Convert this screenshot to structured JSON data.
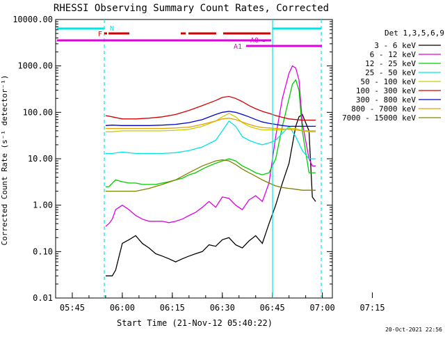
{
  "chart_data": {
    "type": "line",
    "title": "RHESSI Observing Summary Count Rates, Corrected",
    "xlabel": "Start Time (21-Nov-12 05:40:22)",
    "ylabel": "Corrected Count Rate (s⁻¹ detector⁻¹)",
    "yscale": "log",
    "ylim": [
      0.01,
      10000
    ],
    "xlim_minutes": [
      0,
      83
    ],
    "x_ticks": [
      "05:45",
      "06:00",
      "06:15",
      "06:30",
      "06:45",
      "07:00",
      "07:15"
    ],
    "x_tick_minutes": [
      5,
      20,
      35,
      50,
      65,
      80,
      95
    ],
    "y_ticks": [
      "0.01",
      "0.10",
      "1.00",
      "10.00",
      "100.00",
      "1000.00",
      "10000.00"
    ],
    "legend_title": "Det 1,3,5,6,9",
    "timestamp": "20-Oct-2021 22:56",
    "bar_labels": {
      "N": "N",
      "F": "F",
      "A0": "A0",
      "A1": "A1"
    },
    "colors": {
      "cyan": "#00e5e5",
      "red": "#d40000",
      "magenta": "#e000e0"
    },
    "series": [
      {
        "name": "3 - 6 keV",
        "color": "#000000",
        "x": [
          15,
          16,
          17,
          18,
          20,
          22,
          24,
          26,
          28,
          30,
          32,
          34,
          36,
          38,
          40,
          42,
          44,
          46,
          48,
          50,
          52,
          54,
          56,
          58,
          60,
          62,
          64,
          66,
          68,
          70,
          71,
          72,
          73,
          74,
          76,
          77,
          78
        ],
        "values": [
          0.03,
          0.03,
          0.03,
          0.04,
          0.15,
          0.18,
          0.22,
          0.15,
          0.12,
          0.09,
          0.08,
          0.07,
          0.06,
          0.07,
          0.08,
          0.09,
          0.1,
          0.14,
          0.13,
          0.18,
          0.2,
          0.14,
          0.12,
          0.17,
          0.22,
          0.15,
          0.4,
          1.0,
          3.0,
          8.0,
          20,
          50,
          80,
          90,
          40,
          1.5,
          1.2
        ]
      },
      {
        "name": "6 - 12 keV",
        "color": "#e000e0",
        "x": [
          15,
          16,
          17,
          18,
          20,
          22,
          24,
          26,
          28,
          30,
          32,
          34,
          36,
          38,
          40,
          42,
          44,
          46,
          48,
          50,
          52,
          54,
          56,
          58,
          60,
          62,
          64,
          66,
          68,
          70,
          71,
          72,
          73,
          74,
          76,
          77,
          78
        ],
        "values": [
          0.35,
          0.4,
          0.5,
          0.8,
          1.0,
          0.8,
          0.6,
          0.5,
          0.45,
          0.45,
          0.45,
          0.42,
          0.45,
          0.5,
          0.6,
          0.7,
          0.9,
          1.2,
          0.9,
          1.5,
          1.4,
          1.0,
          0.8,
          1.3,
          1.6,
          1.2,
          3.0,
          30,
          200,
          700,
          1000,
          900,
          500,
          60,
          10,
          7,
          7
        ]
      },
      {
        "name": "12 - 25 keV",
        "color": "#00cc00",
        "x": [
          15,
          16,
          17,
          18,
          20,
          22,
          24,
          26,
          28,
          30,
          32,
          34,
          36,
          38,
          40,
          42,
          44,
          46,
          48,
          50,
          52,
          54,
          56,
          58,
          60,
          62,
          64,
          66,
          68,
          70,
          71,
          72,
          73,
          74,
          76,
          77,
          78
        ],
        "values": [
          2.5,
          2.5,
          3,
          3.5,
          3.2,
          3,
          3,
          2.8,
          2.8,
          2.8,
          3,
          3.2,
          3.5,
          3.8,
          4.5,
          5,
          6,
          7,
          8,
          9,
          10,
          9,
          7,
          6,
          5,
          4.5,
          5,
          10,
          50,
          200,
          400,
          500,
          300,
          40,
          5,
          5,
          5
        ]
      },
      {
        "name": "25 - 50 keV",
        "color": "#00e5e5",
        "x": [
          15,
          17,
          20,
          24,
          28,
          32,
          36,
          40,
          44,
          48,
          50,
          52,
          54,
          56,
          58,
          60,
          62,
          64,
          66,
          68,
          70,
          72,
          74,
          76,
          78
        ],
        "values": [
          13,
          13,
          14,
          13,
          13,
          13,
          13.5,
          15,
          18,
          25,
          40,
          65,
          50,
          30,
          25,
          22,
          20,
          22,
          25,
          35,
          50,
          30,
          15,
          10,
          10
        ]
      },
      {
        "name": "50 - 100 keV",
        "color": "#cccc00",
        "x": [
          15,
          17,
          20,
          24,
          28,
          32,
          36,
          40,
          44,
          48,
          50,
          52,
          54,
          56,
          58,
          60,
          62,
          64,
          66,
          68,
          70,
          72,
          74,
          76,
          78
        ],
        "values": [
          38,
          38,
          40,
          40,
          40,
          40,
          41,
          43,
          50,
          65,
          80,
          95,
          80,
          60,
          50,
          45,
          42,
          42,
          42,
          42,
          45,
          45,
          40,
          38,
          38
        ]
      },
      {
        "name": "100 - 300 keV",
        "color": "#d40000",
        "x": [
          15,
          17,
          20,
          24,
          28,
          32,
          36,
          40,
          44,
          48,
          50,
          52,
          54,
          56,
          58,
          60,
          62,
          64,
          66,
          68,
          70,
          72,
          74,
          76,
          78
        ],
        "values": [
          85,
          80,
          72,
          72,
          75,
          80,
          90,
          110,
          140,
          180,
          210,
          220,
          200,
          170,
          140,
          120,
          105,
          95,
          85,
          78,
          72,
          70,
          68,
          68,
          68
        ]
      },
      {
        "name": "300 - 800 keV",
        "color": "#0000d4",
        "x": [
          15,
          17,
          20,
          24,
          28,
          32,
          36,
          40,
          44,
          48,
          50,
          52,
          54,
          56,
          58,
          60,
          62,
          64,
          66,
          68,
          70,
          72,
          74,
          76,
          78
        ],
        "values": [
          52,
          53,
          52,
          52,
          52,
          53,
          55,
          60,
          70,
          90,
          100,
          105,
          100,
          90,
          80,
          70,
          62,
          58,
          55,
          52,
          50,
          50,
          50,
          50,
          50
        ]
      },
      {
        "name": "800 - 7000 keV",
        "color": "#e8a000",
        "x": [
          15,
          17,
          20,
          24,
          28,
          32,
          36,
          40,
          44,
          48,
          50,
          52,
          54,
          56,
          58,
          60,
          62,
          64,
          66,
          68,
          70,
          72,
          74,
          76,
          78
        ],
        "values": [
          45,
          45,
          45,
          45,
          45,
          45,
          46,
          48,
          55,
          65,
          72,
          75,
          70,
          62,
          55,
          50,
          47,
          46,
          45,
          44,
          43,
          42,
          40,
          40,
          40
        ]
      },
      {
        "name": "7000 - 15000 keV",
        "color": "#808000",
        "x": [
          15,
          17,
          20,
          24,
          28,
          32,
          36,
          40,
          44,
          48,
          50,
          52,
          54,
          56,
          58,
          60,
          62,
          64,
          66,
          68,
          70,
          72,
          74,
          76,
          78
        ],
        "values": [
          2,
          2,
          2,
          2,
          2.3,
          2.8,
          3.5,
          5,
          7,
          9,
          9.5,
          9,
          7.5,
          6,
          5,
          4.2,
          3.5,
          3,
          2.6,
          2.4,
          2.3,
          2.2,
          2.1,
          2.1,
          2.1
        ]
      }
    ]
  }
}
